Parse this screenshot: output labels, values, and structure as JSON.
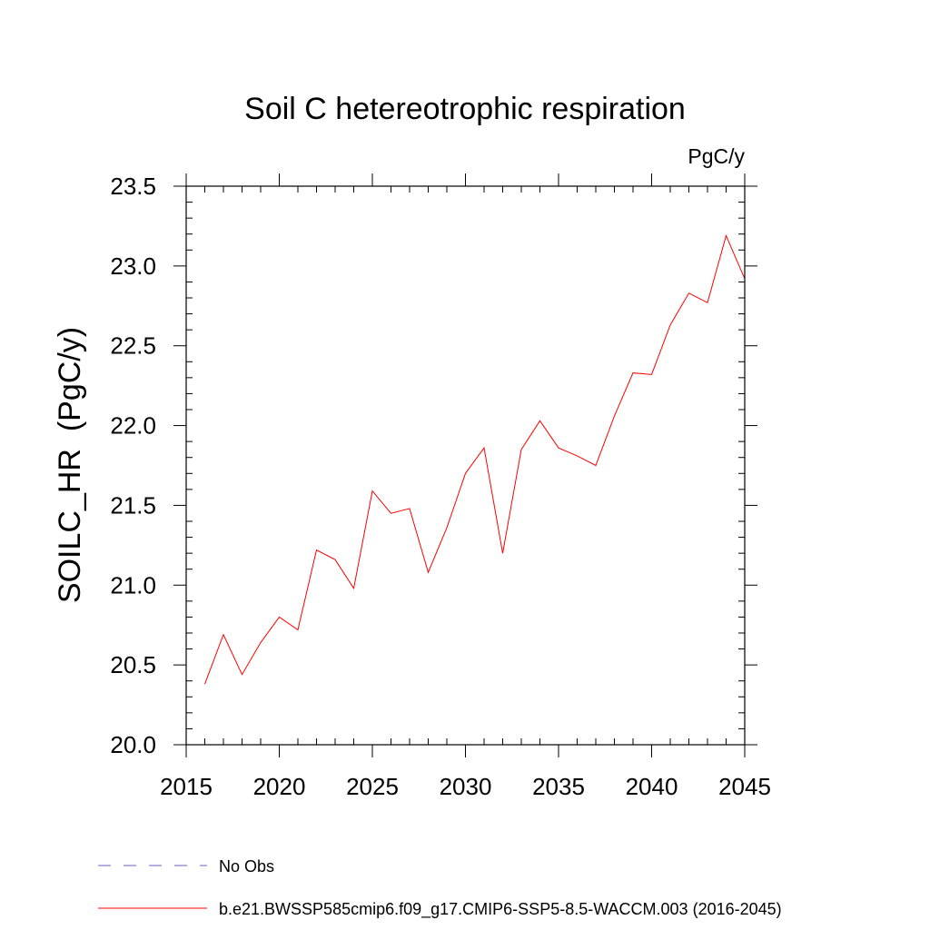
{
  "chart_data": {
    "type": "line",
    "title": "Soil C hetereotrophic respiration",
    "units": "PgC/y",
    "ylabel": "SOILC_HR  (PgC/y)",
    "xlabel": "",
    "xlim": [
      2015,
      2045
    ],
    "ylim": [
      20.0,
      23.5
    ],
    "grid": false,
    "x_major_ticks": [
      2015,
      2020,
      2025,
      2030,
      2035,
      2040,
      2045
    ],
    "x_tick_labels": [
      "2015",
      "2020",
      "2025",
      "2030",
      "2035",
      "2040",
      "2045"
    ],
    "y_major_ticks": [
      20.0,
      20.5,
      21.0,
      21.5,
      22.0,
      22.5,
      23.0,
      23.5
    ],
    "y_tick_labels": [
      "20.0",
      "20.5",
      "21.0",
      "21.5",
      "22.0",
      "22.5",
      "23.0",
      "23.5"
    ],
    "x": [
      2016,
      2017,
      2018,
      2019,
      2020,
      2021,
      2022,
      2023,
      2024,
      2025,
      2026,
      2027,
      2028,
      2029,
      2030,
      2031,
      2032,
      2033,
      2034,
      2035,
      2036,
      2037,
      2038,
      2039,
      2040,
      2041,
      2042,
      2043,
      2044,
      2045
    ],
    "series": [
      {
        "name": "b.e21.BWSSP585cmip6.f09_g17.CMIP6-SSP5-8.5-WACCM.003 (2016-2045)",
        "color": "#ff0000",
        "dash": "solid",
        "values": [
          20.38,
          20.69,
          20.44,
          20.64,
          20.8,
          20.72,
          21.22,
          21.16,
          20.98,
          21.59,
          21.45,
          21.48,
          21.08,
          21.36,
          21.7,
          21.86,
          21.2,
          21.85,
          22.03,
          21.86,
          21.81,
          21.75,
          22.06,
          22.33,
          22.32,
          22.63,
          22.83,
          22.77,
          23.19,
          22.92
        ]
      }
    ],
    "legend": {
      "placement": "bottom-left",
      "entries": [
        {
          "label": "No Obs",
          "color": "#6b5fbf",
          "dash": "dashed"
        },
        {
          "label": "b.e21.BWSSP585cmip6.f09_g17.CMIP6-SSP5-8.5-WACCM.003 (2016-2045)",
          "color": "#ff0000",
          "dash": "solid"
        }
      ]
    }
  }
}
